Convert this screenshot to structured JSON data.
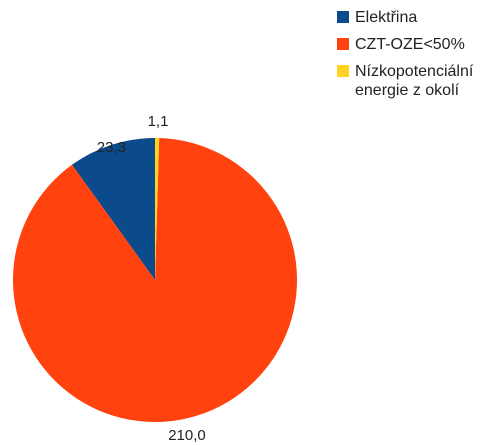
{
  "chart_data": {
    "type": "pie",
    "title": "",
    "slices": [
      {
        "label": "Elektřina",
        "value": 23.3,
        "display": "23,3",
        "color": "#0b4a8b"
      },
      {
        "label": "CZT-OZE<50%",
        "value": 210.0,
        "display": "210,0",
        "color": "#ff420e"
      },
      {
        "label": "Nízkopotenciální energie z okolí",
        "value": 1.1,
        "display": "1,1",
        "color": "#ffd320"
      }
    ],
    "legend_position": "top-right"
  }
}
